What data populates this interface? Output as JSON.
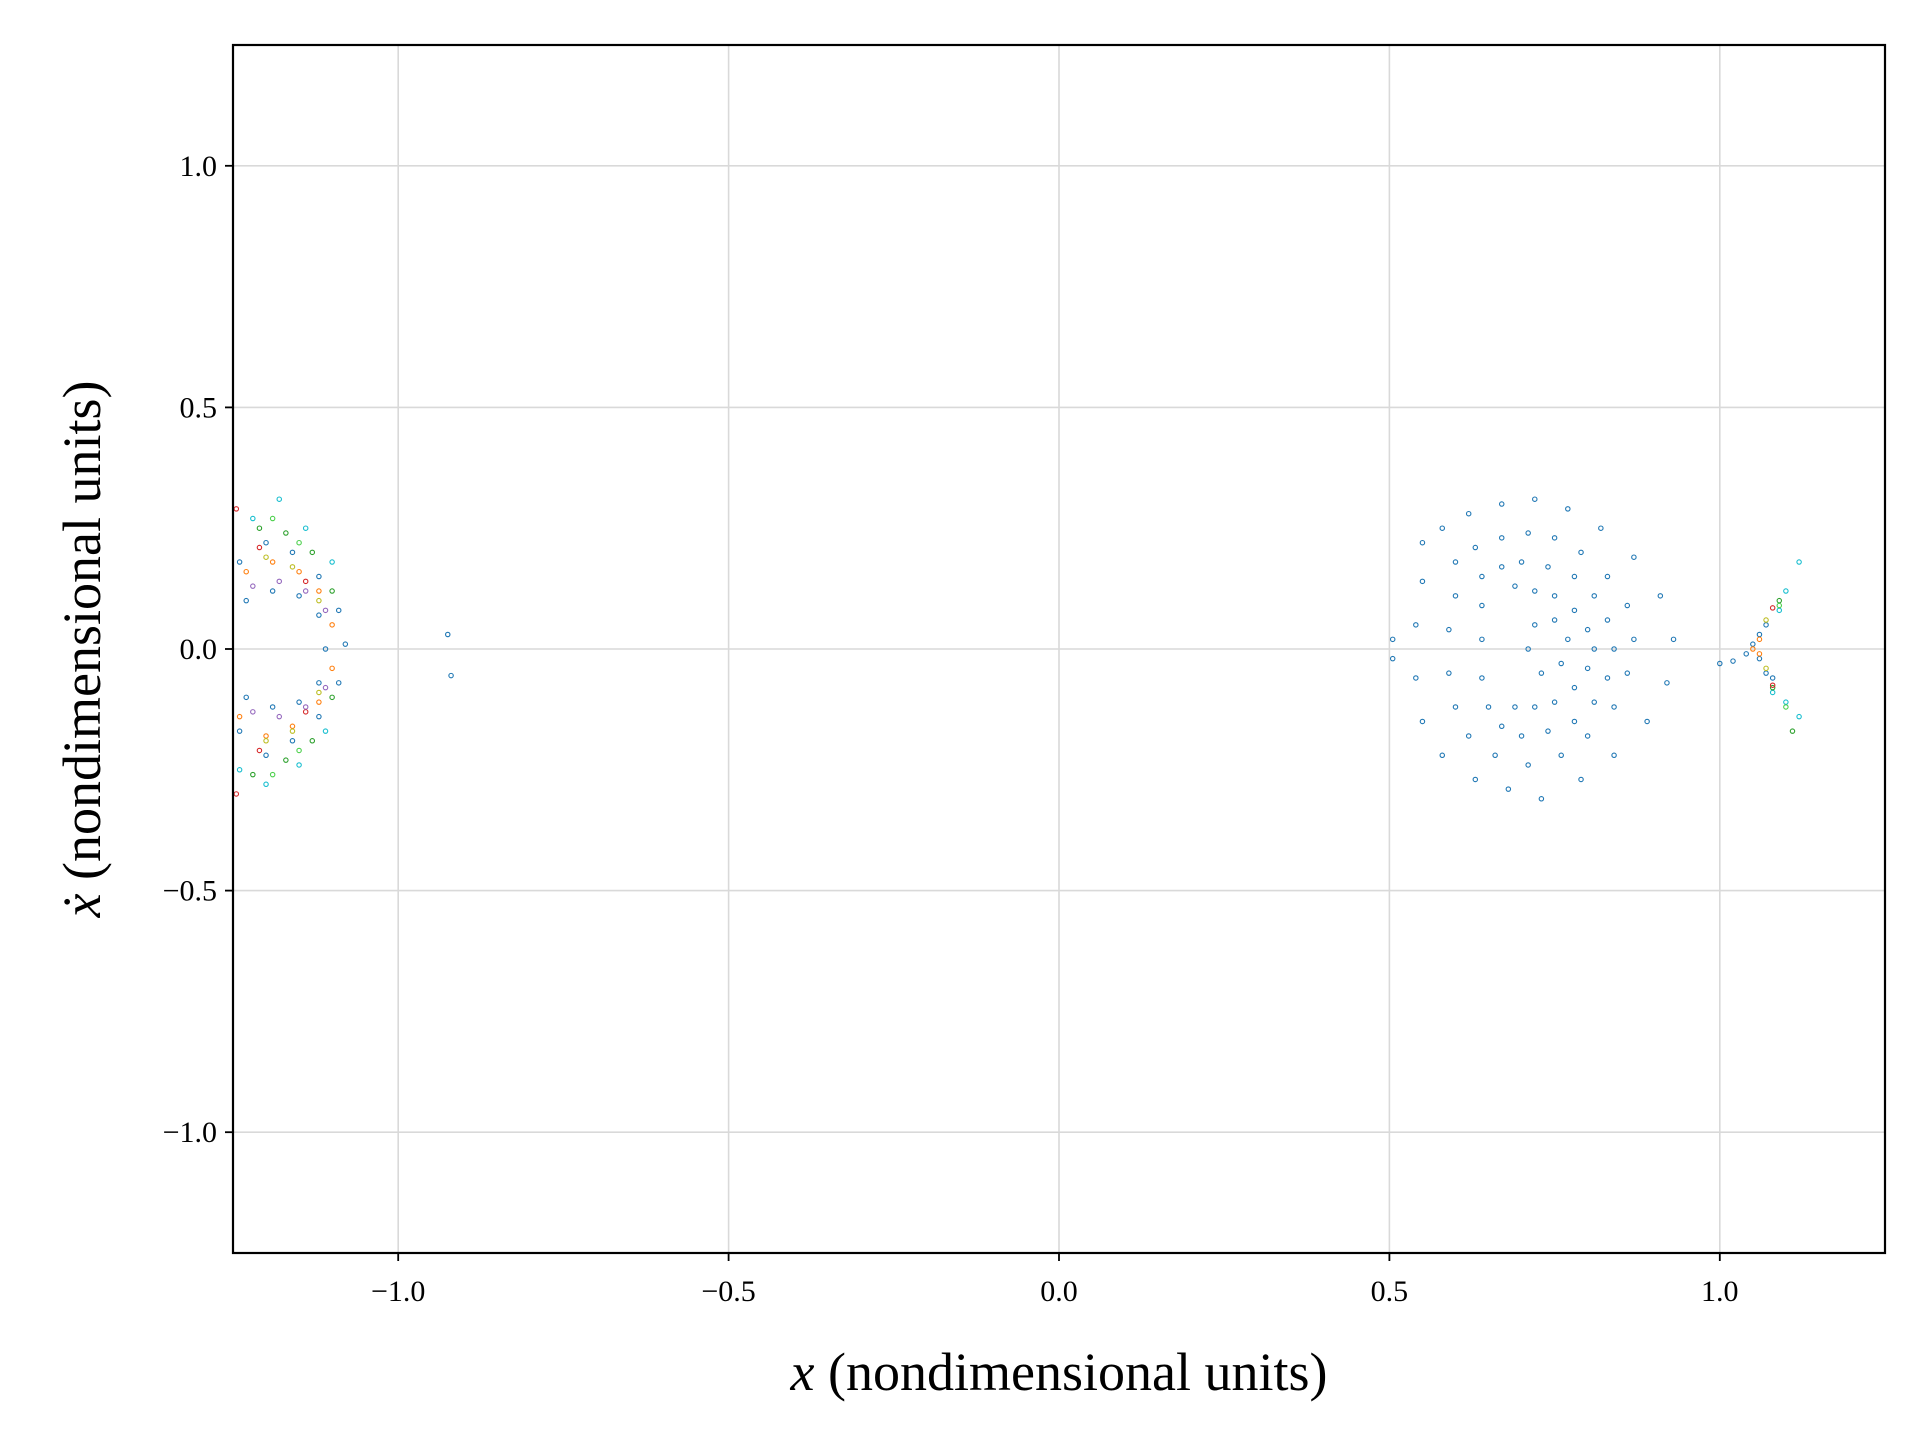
{
  "chart_data": {
    "type": "scatter",
    "title": "",
    "xlabel_symbol": "x",
    "xlabel_text": " (nondimensional units)",
    "ylabel_symbol": "ẋ",
    "ylabel_text": " (nondimensional units)",
    "xlim": [
      -1.25,
      1.25
    ],
    "ylim": [
      -1.25,
      1.25
    ],
    "xticks": [
      -1.0,
      -0.5,
      0.0,
      0.5,
      1.0
    ],
    "yticks": [
      -1.0,
      -0.5,
      0.0,
      0.5,
      1.0
    ],
    "xtick_labels": [
      "−1.0",
      "−0.5",
      "0.0",
      "0.5",
      "1.0"
    ],
    "ytick_labels": [
      "−1.0",
      "−0.5",
      "0.0",
      "0.5",
      "1.0"
    ],
    "grid": true,
    "legend": "none",
    "colors": {
      "blue": "#1f77b4",
      "cyan": "#17becf",
      "orange": "#ff7f0e",
      "green": "#2ca02c",
      "red": "#d62728",
      "purple": "#9467bd",
      "gray": "#7f7f7f",
      "olive": "#bcbd22",
      "lime": "#4cd04c"
    },
    "series": [
      {
        "color": "#1f77b4",
        "points": [
          [
            -1.24,
            0.18
          ],
          [
            -1.2,
            0.22
          ],
          [
            -1.16,
            0.2
          ],
          [
            -1.12,
            0.15
          ],
          [
            -1.09,
            0.08
          ],
          [
            -1.08,
            0.01
          ],
          [
            -1.09,
            -0.07
          ],
          [
            -1.12,
            -0.14
          ],
          [
            -1.16,
            -0.19
          ],
          [
            -1.2,
            -0.22
          ],
          [
            -1.24,
            -0.17
          ],
          [
            -1.23,
            0.1
          ],
          [
            -1.19,
            0.12
          ],
          [
            -1.15,
            0.11
          ],
          [
            -1.12,
            0.07
          ],
          [
            -1.11,
            0.0
          ],
          [
            -1.12,
            -0.07
          ],
          [
            -1.15,
            -0.11
          ],
          [
            -1.19,
            -0.12
          ],
          [
            -1.23,
            -0.1
          ],
          [
            -0.925,
            0.03
          ],
          [
            -0.92,
            -0.055
          ],
          [
            0.505,
            0.02
          ],
          [
            0.505,
            -0.02
          ],
          [
            0.55,
            0.22
          ],
          [
            0.58,
            0.25
          ],
          [
            0.62,
            0.28
          ],
          [
            0.67,
            0.3
          ],
          [
            0.72,
            0.31
          ],
          [
            0.77,
            0.29
          ],
          [
            0.82,
            0.25
          ],
          [
            0.87,
            0.19
          ],
          [
            0.91,
            0.11
          ],
          [
            0.93,
            0.02
          ],
          [
            0.92,
            -0.07
          ],
          [
            0.89,
            -0.15
          ],
          [
            0.84,
            -0.22
          ],
          [
            0.79,
            -0.27
          ],
          [
            0.73,
            -0.31
          ],
          [
            0.68,
            -0.29
          ],
          [
            0.63,
            -0.27
          ],
          [
            0.58,
            -0.22
          ],
          [
            0.55,
            -0.15
          ],
          [
            0.54,
            -0.06
          ],
          [
            0.54,
            0.05
          ],
          [
            0.55,
            0.14
          ],
          [
            0.6,
            0.18
          ],
          [
            0.63,
            0.21
          ],
          [
            0.67,
            0.23
          ],
          [
            0.71,
            0.24
          ],
          [
            0.75,
            0.23
          ],
          [
            0.79,
            0.2
          ],
          [
            0.83,
            0.15
          ],
          [
            0.86,
            0.09
          ],
          [
            0.87,
            0.02
          ],
          [
            0.86,
            -0.05
          ],
          [
            0.84,
            -0.12
          ],
          [
            0.8,
            -0.18
          ],
          [
            0.76,
            -0.22
          ],
          [
            0.71,
            -0.24
          ],
          [
            0.66,
            -0.22
          ],
          [
            0.62,
            -0.18
          ],
          [
            0.6,
            -0.12
          ],
          [
            0.59,
            -0.05
          ],
          [
            0.59,
            0.04
          ],
          [
            0.6,
            0.11
          ],
          [
            0.64,
            0.15
          ],
          [
            0.67,
            0.17
          ],
          [
            0.7,
            0.18
          ],
          [
            0.74,
            0.17
          ],
          [
            0.78,
            0.15
          ],
          [
            0.81,
            0.11
          ],
          [
            0.83,
            0.06
          ],
          [
            0.84,
            0.0
          ],
          [
            0.83,
            -0.06
          ],
          [
            0.81,
            -0.11
          ],
          [
            0.78,
            -0.15
          ],
          [
            0.74,
            -0.17
          ],
          [
            0.7,
            -0.18
          ],
          [
            0.67,
            -0.16
          ],
          [
            0.65,
            -0.12
          ],
          [
            0.64,
            -0.06
          ],
          [
            0.64,
            0.02
          ],
          [
            0.64,
            0.09
          ],
          [
            0.69,
            0.13
          ],
          [
            0.72,
            0.12
          ],
          [
            0.75,
            0.11
          ],
          [
            0.78,
            0.08
          ],
          [
            0.8,
            0.04
          ],
          [
            0.81,
            0.0
          ],
          [
            0.8,
            -0.04
          ],
          [
            0.78,
            -0.08
          ],
          [
            0.75,
            -0.11
          ],
          [
            0.72,
            -0.12
          ],
          [
            0.69,
            -0.12
          ],
          [
            0.72,
            0.05
          ],
          [
            0.75,
            0.06
          ],
          [
            0.77,
            0.02
          ],
          [
            0.76,
            -0.03
          ],
          [
            0.73,
            -0.05
          ],
          [
            0.71,
            0.0
          ],
          [
            1.0,
            -0.03
          ],
          [
            1.02,
            -0.025
          ],
          [
            1.04,
            -0.01
          ],
          [
            1.05,
            0.01
          ],
          [
            1.06,
            0.03
          ],
          [
            1.07,
            0.05
          ],
          [
            1.06,
            -0.02
          ],
          [
            1.07,
            -0.05
          ],
          [
            1.08,
            -0.06
          ]
        ]
      },
      {
        "color": "#17becf",
        "points": [
          [
            -1.18,
            0.31
          ],
          [
            -1.22,
            0.27
          ],
          [
            -1.14,
            0.25
          ],
          [
            -1.1,
            0.18
          ],
          [
            -1.24,
            -0.25
          ],
          [
            -1.2,
            -0.28
          ],
          [
            -1.15,
            -0.24
          ],
          [
            -1.11,
            -0.17
          ],
          [
            1.12,
            0.18
          ],
          [
            1.12,
            -0.14
          ],
          [
            1.09,
            0.08
          ],
          [
            1.08,
            -0.09
          ],
          [
            1.1,
            0.12
          ],
          [
            1.1,
            -0.11
          ]
        ]
      },
      {
        "color": "#ff7f0e",
        "points": [
          [
            -1.23,
            0.16
          ],
          [
            -1.19,
            0.18
          ],
          [
            -1.15,
            0.16
          ],
          [
            -1.12,
            0.12
          ],
          [
            -1.1,
            0.05
          ],
          [
            -1.1,
            -0.04
          ],
          [
            -1.12,
            -0.11
          ],
          [
            -1.16,
            -0.16
          ],
          [
            -1.2,
            -0.18
          ],
          [
            -1.24,
            -0.14
          ],
          [
            1.05,
            0.0
          ],
          [
            1.06,
            0.02
          ],
          [
            1.06,
            -0.01
          ]
        ]
      },
      {
        "color": "#2ca02c",
        "points": [
          [
            -1.21,
            0.25
          ],
          [
            -1.17,
            0.24
          ],
          [
            -1.13,
            0.2
          ],
          [
            -1.1,
            0.12
          ],
          [
            -1.22,
            -0.26
          ],
          [
            -1.17,
            -0.23
          ],
          [
            -1.13,
            -0.19
          ],
          [
            -1.1,
            -0.1
          ],
          [
            1.09,
            0.1
          ],
          [
            1.08,
            -0.08
          ],
          [
            1.11,
            -0.17
          ]
        ]
      },
      {
        "color": "#d62728",
        "points": [
          [
            -1.245,
            0.29
          ],
          [
            -1.245,
            -0.3
          ],
          [
            -1.21,
            0.21
          ],
          [
            -1.21,
            -0.21
          ],
          [
            -1.14,
            0.14
          ],
          [
            -1.14,
            -0.13
          ],
          [
            1.08,
            0.085
          ],
          [
            1.08,
            -0.075
          ]
        ]
      },
      {
        "color": "#9467bd",
        "points": [
          [
            -1.22,
            0.13
          ],
          [
            -1.18,
            0.14
          ],
          [
            -1.14,
            0.12
          ],
          [
            -1.11,
            0.08
          ],
          [
            -1.11,
            -0.08
          ],
          [
            -1.14,
            -0.12
          ],
          [
            -1.18,
            -0.14
          ],
          [
            -1.22,
            -0.13
          ]
        ]
      },
      {
        "color": "#bcbd22",
        "points": [
          [
            -1.2,
            0.19
          ],
          [
            -1.16,
            0.17
          ],
          [
            -1.12,
            0.1
          ],
          [
            -1.12,
            -0.09
          ],
          [
            -1.16,
            -0.17
          ],
          [
            -1.2,
            -0.19
          ],
          [
            1.07,
            0.06
          ],
          [
            1.07,
            -0.04
          ]
        ]
      },
      {
        "color": "#4cd04c",
        "points": [
          [
            -1.19,
            0.27
          ],
          [
            -1.15,
            0.22
          ],
          [
            -1.19,
            -0.26
          ],
          [
            -1.15,
            -0.21
          ],
          [
            1.09,
            0.09
          ],
          [
            1.1,
            -0.12
          ]
        ]
      }
    ]
  }
}
